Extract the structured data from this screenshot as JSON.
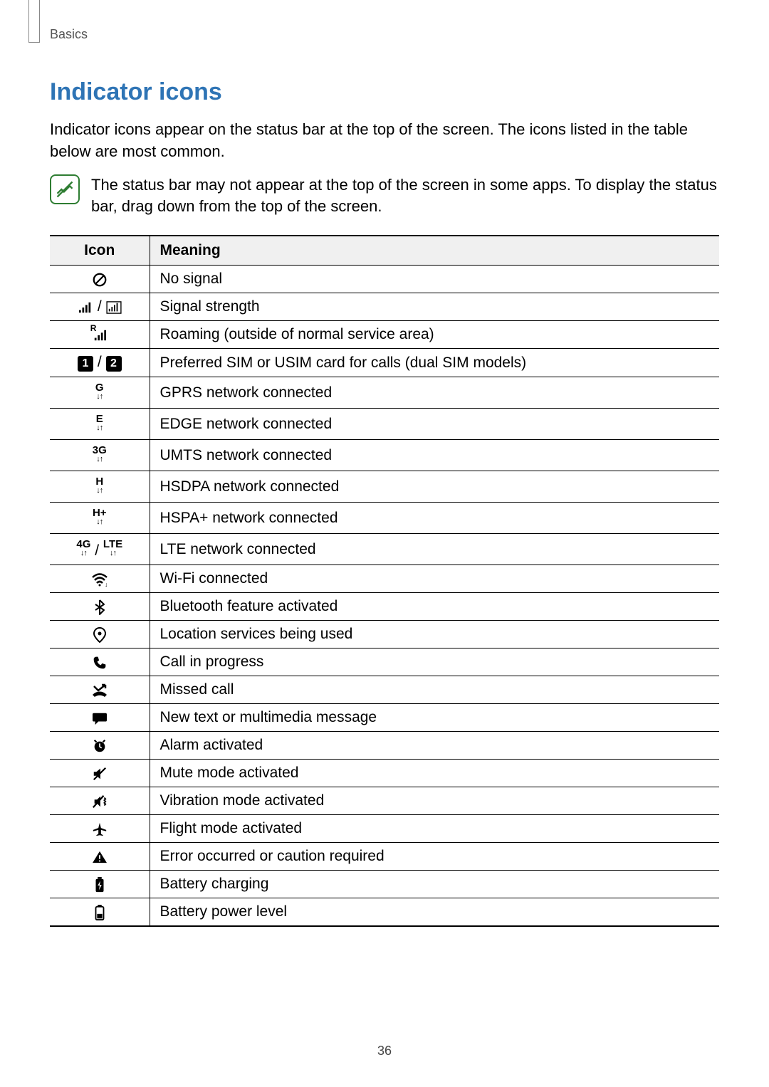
{
  "breadcrumb": "Basics",
  "heading": "Indicator icons",
  "intro": "Indicator icons appear on the status bar at the top of the screen. The icons listed in the table below are most common.",
  "note": "The status bar may not appear at the top of the screen in some apps. To display the status bar, drag down from the top of the screen.",
  "table": {
    "header_icon": "Icon",
    "header_meaning": "Meaning",
    "rows": [
      {
        "icon_key": "no-signal",
        "meaning": "No signal"
      },
      {
        "icon_key": "signal",
        "meaning": "Signal strength"
      },
      {
        "icon_key": "roaming",
        "meaning": "Roaming (outside of normal service area)"
      },
      {
        "icon_key": "sim",
        "meaning": "Preferred SIM or USIM card for calls (dual SIM models)"
      },
      {
        "icon_key": "gprs",
        "label": "G",
        "meaning": "GPRS network connected"
      },
      {
        "icon_key": "edge",
        "label": "E",
        "meaning": "EDGE network connected"
      },
      {
        "icon_key": "umts",
        "label": "3G",
        "meaning": "UMTS network connected"
      },
      {
        "icon_key": "hsdpa",
        "label": "H",
        "meaning": "HSDPA network connected"
      },
      {
        "icon_key": "hspa",
        "label": "H+",
        "meaning": "HSPA+ network connected"
      },
      {
        "icon_key": "lte",
        "label": "4G",
        "label2": "LTE",
        "meaning": "LTE network connected"
      },
      {
        "icon_key": "wifi",
        "meaning": "Wi-Fi connected"
      },
      {
        "icon_key": "bluetooth",
        "meaning": "Bluetooth feature activated"
      },
      {
        "icon_key": "location",
        "meaning": "Location services being used"
      },
      {
        "icon_key": "call",
        "meaning": "Call in progress"
      },
      {
        "icon_key": "missed",
        "meaning": "Missed call"
      },
      {
        "icon_key": "message",
        "meaning": "New text or multimedia message"
      },
      {
        "icon_key": "alarm",
        "meaning": "Alarm activated"
      },
      {
        "icon_key": "mute",
        "meaning": "Mute mode activated"
      },
      {
        "icon_key": "vibrate",
        "meaning": "Vibration mode activated"
      },
      {
        "icon_key": "flight",
        "meaning": "Flight mode activated"
      },
      {
        "icon_key": "error",
        "meaning": "Error occurred or caution required"
      },
      {
        "icon_key": "charging",
        "meaning": "Battery charging"
      },
      {
        "icon_key": "battery",
        "meaning": "Battery power level"
      }
    ]
  },
  "page_number": "36",
  "colors": {
    "heading": "#2e74b5",
    "note_border": "#2e7d32",
    "table_header_bg": "#f0f0f0"
  }
}
